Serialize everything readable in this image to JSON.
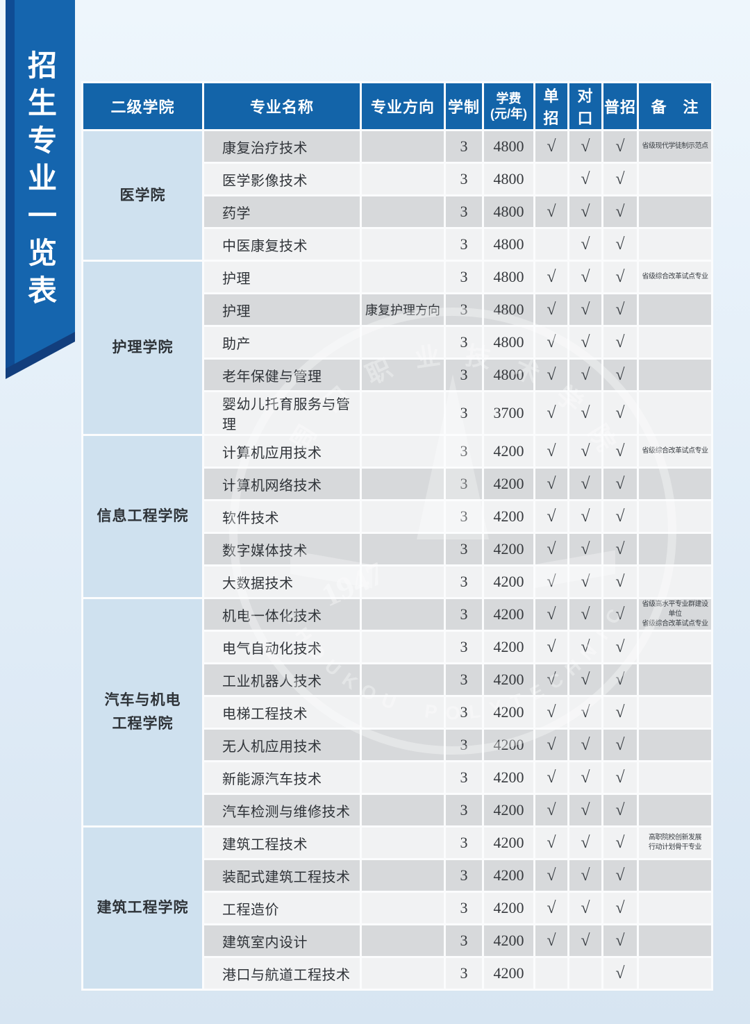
{
  "page": {
    "title_vertical": "招生专业一览表"
  },
  "watermark": {
    "cn": "周口职业技术学院",
    "en": "ZHOUKOU POLYTECHNIC",
    "year": "1947"
  },
  "colors": {
    "ribbon_blue": "#1565ae",
    "ribbon_navy": "#123e7d",
    "header_blue": "#1364a9",
    "college_cell": "#cfe1ef",
    "row_dark": "#d7d9db",
    "row_light": "#f1f2f3"
  },
  "table": {
    "headers": [
      "二级学院",
      "专业名称",
      "专业方向",
      "学制",
      "学费\n(元/年)",
      "单招",
      "对口",
      "普招",
      "备　注"
    ],
    "check_mark": "√",
    "sections": [
      {
        "college": "医学院",
        "rows": [
          {
            "major": "康复治疗技术",
            "direction": "",
            "years": "3",
            "fee": "4800",
            "single": true,
            "counterpart": true,
            "general": true,
            "remark": "省级现代学徒制示范点",
            "shade": "d"
          },
          {
            "major": "医学影像技术",
            "direction": "",
            "years": "3",
            "fee": "4800",
            "single": false,
            "counterpart": true,
            "general": true,
            "remark": "",
            "shade": "l"
          },
          {
            "major": "药学",
            "direction": "",
            "years": "3",
            "fee": "4800",
            "single": true,
            "counterpart": true,
            "general": true,
            "remark": "",
            "shade": "d"
          },
          {
            "major": "中医康复技术",
            "direction": "",
            "years": "3",
            "fee": "4800",
            "single": false,
            "counterpart": true,
            "general": true,
            "remark": "",
            "shade": "l"
          }
        ]
      },
      {
        "college": "护理学院",
        "rows": [
          {
            "major": "护理",
            "direction": "",
            "years": "3",
            "fee": "4800",
            "single": true,
            "counterpart": true,
            "general": true,
            "remark": "省级综合改革试点专业",
            "shade": "l"
          },
          {
            "major": "护理",
            "direction": "康复护理方向",
            "years": "3",
            "fee": "4800",
            "single": true,
            "counterpart": true,
            "general": true,
            "remark": "",
            "shade": "d"
          },
          {
            "major": "助产",
            "direction": "",
            "years": "3",
            "fee": "4800",
            "single": true,
            "counterpart": true,
            "general": true,
            "remark": "",
            "shade": "l"
          },
          {
            "major": "老年保健与管理",
            "direction": "",
            "years": "3",
            "fee": "4800",
            "single": true,
            "counterpart": true,
            "general": true,
            "remark": "",
            "shade": "d"
          },
          {
            "major": "婴幼儿托育服务与管理",
            "direction": "",
            "years": "3",
            "fee": "3700",
            "single": true,
            "counterpart": true,
            "general": true,
            "remark": "",
            "shade": "l"
          }
        ]
      },
      {
        "college": "信息工程学院",
        "rows": [
          {
            "major": "计算机应用技术",
            "direction": "",
            "years": "3",
            "fee": "4200",
            "single": true,
            "counterpart": true,
            "general": true,
            "remark": "省级综合改革试点专业",
            "shade": "l"
          },
          {
            "major": "计算机网络技术",
            "direction": "",
            "years": "3",
            "fee": "4200",
            "single": true,
            "counterpart": true,
            "general": true,
            "remark": "",
            "shade": "d"
          },
          {
            "major": "软件技术",
            "direction": "",
            "years": "3",
            "fee": "4200",
            "single": true,
            "counterpart": true,
            "general": true,
            "remark": "",
            "shade": "l"
          },
          {
            "major": "数字媒体技术",
            "direction": "",
            "years": "3",
            "fee": "4200",
            "single": true,
            "counterpart": true,
            "general": true,
            "remark": "",
            "shade": "d"
          },
          {
            "major": "大数据技术",
            "direction": "",
            "years": "3",
            "fee": "4200",
            "single": true,
            "counterpart": true,
            "general": true,
            "remark": "",
            "shade": "l"
          }
        ]
      },
      {
        "college": "汽车与机电\n工程学院",
        "rows": [
          {
            "major": "机电一体化技术",
            "direction": "",
            "years": "3",
            "fee": "4200",
            "single": true,
            "counterpart": true,
            "general": true,
            "remark": "省级高水平专业群建设单位\n省级综合改革试点专业",
            "shade": "d"
          },
          {
            "major": "电气自动化技术",
            "direction": "",
            "years": "3",
            "fee": "4200",
            "single": true,
            "counterpart": true,
            "general": true,
            "remark": "",
            "shade": "l"
          },
          {
            "major": "工业机器人技术",
            "direction": "",
            "years": "3",
            "fee": "4200",
            "single": true,
            "counterpart": true,
            "general": true,
            "remark": "",
            "shade": "d"
          },
          {
            "major": "电梯工程技术",
            "direction": "",
            "years": "3",
            "fee": "4200",
            "single": true,
            "counterpart": true,
            "general": true,
            "remark": "",
            "shade": "l"
          },
          {
            "major": "无人机应用技术",
            "direction": "",
            "years": "3",
            "fee": "4200",
            "single": true,
            "counterpart": true,
            "general": true,
            "remark": "",
            "shade": "d"
          },
          {
            "major": "新能源汽车技术",
            "direction": "",
            "years": "3",
            "fee": "4200",
            "single": true,
            "counterpart": true,
            "general": true,
            "remark": "",
            "shade": "l"
          },
          {
            "major": "汽车检测与维修技术",
            "direction": "",
            "years": "3",
            "fee": "4200",
            "single": true,
            "counterpart": true,
            "general": true,
            "remark": "",
            "shade": "d"
          }
        ]
      },
      {
        "college": "建筑工程学院",
        "rows": [
          {
            "major": "建筑工程技术",
            "direction": "",
            "years": "3",
            "fee": "4200",
            "single": true,
            "counterpart": true,
            "general": true,
            "remark": "高职院校创新发展\n行动计划骨干专业",
            "shade": "l"
          },
          {
            "major": "装配式建筑工程技术",
            "direction": "",
            "years": "3",
            "fee": "4200",
            "single": true,
            "counterpart": true,
            "general": true,
            "remark": "",
            "shade": "d"
          },
          {
            "major": "工程造价",
            "direction": "",
            "years": "3",
            "fee": "4200",
            "single": true,
            "counterpart": true,
            "general": true,
            "remark": "",
            "shade": "l"
          },
          {
            "major": "建筑室内设计",
            "direction": "",
            "years": "3",
            "fee": "4200",
            "single": true,
            "counterpart": true,
            "general": true,
            "remark": "",
            "shade": "d"
          },
          {
            "major": "港口与航道工程技术",
            "direction": "",
            "years": "3",
            "fee": "4200",
            "single": false,
            "counterpart": false,
            "general": true,
            "remark": "",
            "shade": "l"
          }
        ]
      }
    ]
  }
}
